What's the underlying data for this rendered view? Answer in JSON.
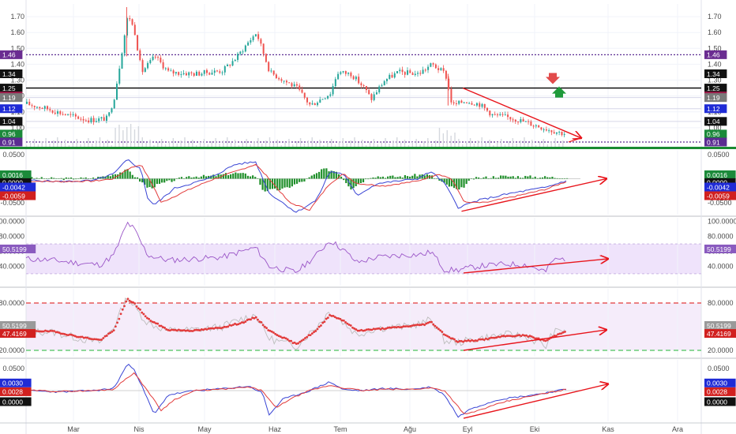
{
  "chart_data": [
    {
      "type": "candlestick",
      "x_labels": [
        "Mar",
        "Nis",
        "May",
        "Haz",
        "Tem",
        "Ağu",
        "Eyl",
        "Eki",
        "Kas",
        "Ara"
      ],
      "ylim": [
        0.88,
        1.78
      ],
      "y_ticks": [
        "1.70",
        "1.60",
        "1.50",
        "1.40",
        "1.30",
        "1.20",
        "1.10",
        "1.00"
      ],
      "horizontal_levels": [
        {
          "value": 1.46,
          "label": "1.46",
          "style": "dotted",
          "color": "#5b2c91"
        },
        {
          "value": 1.25,
          "label": "1.25",
          "style": "solid",
          "color": "#000000"
        },
        {
          "value": 0.91,
          "label": "0.91",
          "style": "dotted",
          "color": "#5b2c91"
        }
      ],
      "price_badges": [
        {
          "value": 1.46,
          "label": "1.46",
          "color": "#6a2c91"
        },
        {
          "value": 1.34,
          "label": "1.34",
          "color": "#111111"
        },
        {
          "value": 1.25,
          "label": "1.25",
          "color": "#111111"
        },
        {
          "value": 1.25,
          "label": "1.25",
          "color": "#9c1b4a"
        },
        {
          "value": 1.19,
          "label": "1.19",
          "color": "#7a7a7a"
        },
        {
          "value": 1.12,
          "label": "1.12",
          "color": "#1f2bd6"
        },
        {
          "value": 1.04,
          "label": "1.04",
          "color": "#111111"
        },
        {
          "value": 0.96,
          "label": "0.96",
          "color": "#1b8a3a"
        },
        {
          "value": 0.91,
          "label": "0.91",
          "color": "#5b2c91"
        }
      ],
      "close_path": [
        [
          0,
          1.15
        ],
        [
          0.03,
          1.12
        ],
        [
          0.06,
          1.08
        ],
        [
          0.09,
          1.05
        ],
        [
          0.1,
          1.05
        ],
        [
          0.12,
          1.06
        ],
        [
          0.13,
          1.2
        ],
        [
          0.15,
          1.72
        ],
        [
          0.16,
          1.6
        ],
        [
          0.17,
          1.35
        ],
        [
          0.19,
          1.45
        ],
        [
          0.21,
          1.35
        ],
        [
          0.25,
          1.34
        ],
        [
          0.29,
          1.36
        ],
        [
          0.31,
          1.44
        ],
        [
          0.33,
          1.55
        ],
        [
          0.34,
          1.6
        ],
        [
          0.36,
          1.35
        ],
        [
          0.38,
          1.3
        ],
        [
          0.4,
          1.25
        ],
        [
          0.42,
          1.14
        ],
        [
          0.45,
          1.22
        ],
        [
          0.46,
          1.35
        ],
        [
          0.48,
          1.34
        ],
        [
          0.5,
          1.25
        ],
        [
          0.51,
          1.18
        ],
        [
          0.53,
          1.3
        ],
        [
          0.55,
          1.35
        ],
        [
          0.58,
          1.34
        ],
        [
          0.6,
          1.4
        ],
        [
          0.62,
          1.34
        ],
        [
          0.63,
          1.14
        ],
        [
          0.65,
          1.17
        ],
        [
          0.67,
          1.15
        ],
        [
          0.69,
          1.08
        ],
        [
          0.72,
          1.06
        ],
        [
          0.75,
          1.02
        ],
        [
          0.78,
          0.98
        ],
        [
          0.8,
          0.96
        ]
      ],
      "annotations": [
        "sell-arrow",
        "buy-arrow",
        "descending-trendline"
      ]
    },
    {
      "type": "macd",
      "ylim": [
        -0.075,
        0.06
      ],
      "y_ticks": [
        "0.0500",
        "-0.0500"
      ],
      "badges": [
        {
          "value": 0.0016,
          "label": "0.0016",
          "color": "#1b8a3a"
        },
        {
          "value": 0.0,
          "label": "0.0000",
          "color": "#111111"
        },
        {
          "value": -0.0042,
          "label": "-0.0042",
          "color": "#1f2bd6"
        },
        {
          "value": -0.0059,
          "label": "-0.0059",
          "color": "#d1201f"
        }
      ],
      "macd_path": [
        [
          0,
          -0.003
        ],
        [
          0.05,
          -0.006
        ],
        [
          0.1,
          -0.004
        ],
        [
          0.13,
          0.01
        ],
        [
          0.15,
          0.04
        ],
        [
          0.17,
          0.02
        ],
        [
          0.18,
          -0.04
        ],
        [
          0.19,
          -0.055
        ],
        [
          0.22,
          -0.02
        ],
        [
          0.27,
          0.0
        ],
        [
          0.31,
          0.03
        ],
        [
          0.34,
          0.035
        ],
        [
          0.36,
          -0.03
        ],
        [
          0.4,
          -0.07
        ],
        [
          0.43,
          -0.045
        ],
        [
          0.45,
          0.015
        ],
        [
          0.47,
          0.01
        ],
        [
          0.49,
          -0.035
        ],
        [
          0.52,
          -0.01
        ],
        [
          0.58,
          0.0
        ],
        [
          0.6,
          0.015
        ],
        [
          0.62,
          -0.01
        ],
        [
          0.64,
          -0.06
        ],
        [
          0.67,
          -0.045
        ],
        [
          0.72,
          -0.03
        ],
        [
          0.77,
          -0.018
        ],
        [
          0.8,
          -0.004
        ]
      ],
      "signal_path": [
        [
          0,
          -0.005
        ],
        [
          0.05,
          -0.006
        ],
        [
          0.1,
          -0.005
        ],
        [
          0.13,
          0.0
        ],
        [
          0.15,
          0.02
        ],
        [
          0.17,
          0.03
        ],
        [
          0.19,
          -0.02
        ],
        [
          0.2,
          -0.05
        ],
        [
          0.23,
          -0.03
        ],
        [
          0.27,
          -0.005
        ],
        [
          0.31,
          0.015
        ],
        [
          0.34,
          0.03
        ],
        [
          0.36,
          0.0
        ],
        [
          0.39,
          -0.05
        ],
        [
          0.42,
          -0.065
        ],
        [
          0.45,
          -0.01
        ],
        [
          0.47,
          0.01
        ],
        [
          0.49,
          -0.01
        ],
        [
          0.53,
          -0.015
        ],
        [
          0.58,
          -0.005
        ],
        [
          0.61,
          0.01
        ],
        [
          0.63,
          0.0
        ],
        [
          0.65,
          -0.05
        ],
        [
          0.68,
          -0.05
        ],
        [
          0.73,
          -0.035
        ],
        [
          0.77,
          -0.022
        ],
        [
          0.8,
          -0.006
        ]
      ],
      "histogram_path": [
        [
          0,
          0.001
        ],
        [
          0.05,
          0.0
        ],
        [
          0.1,
          0.001
        ],
        [
          0.13,
          0.01
        ],
        [
          0.15,
          0.018
        ],
        [
          0.16,
          0.005
        ],
        [
          0.18,
          -0.02
        ],
        [
          0.2,
          -0.01
        ],
        [
          0.24,
          0.005
        ],
        [
          0.27,
          0.005
        ],
        [
          0.31,
          0.012
        ],
        [
          0.34,
          0.005
        ],
        [
          0.35,
          -0.025
        ],
        [
          0.38,
          -0.022
        ],
        [
          0.41,
          -0.005
        ],
        [
          0.44,
          0.02
        ],
        [
          0.46,
          0.015
        ],
        [
          0.48,
          -0.02
        ],
        [
          0.51,
          0.005
        ],
        [
          0.55,
          0.004
        ],
        [
          0.59,
          0.009
        ],
        [
          0.6,
          0.005
        ],
        [
          0.62,
          -0.012
        ],
        [
          0.64,
          -0.025
        ],
        [
          0.66,
          0.0
        ],
        [
          0.7,
          0.005
        ],
        [
          0.75,
          0.004
        ],
        [
          0.8,
          0.002
        ]
      ],
      "annotations": [
        "ascending-trendline"
      ]
    },
    {
      "type": "rsi",
      "ylim": [
        14,
        105
      ],
      "y_ticks": [
        "100.0000",
        "80.0000",
        "60.0000",
        "40.0000"
      ],
      "band": [
        30,
        70
      ],
      "badge": {
        "value": 50.5199,
        "label": "50.5199",
        "color": "#8a5bbf"
      },
      "rsi_path": [
        [
          0,
          50
        ],
        [
          0.04,
          48
        ],
        [
          0.08,
          44
        ],
        [
          0.11,
          42
        ],
        [
          0.13,
          55
        ],
        [
          0.15,
          98
        ],
        [
          0.16,
          90
        ],
        [
          0.18,
          55
        ],
        [
          0.21,
          48
        ],
        [
          0.25,
          50
        ],
        [
          0.29,
          52
        ],
        [
          0.32,
          60
        ],
        [
          0.34,
          65
        ],
        [
          0.36,
          40
        ],
        [
          0.4,
          32
        ],
        [
          0.43,
          55
        ],
        [
          0.45,
          75
        ],
        [
          0.47,
          62
        ],
        [
          0.49,
          45
        ],
        [
          0.52,
          52
        ],
        [
          0.56,
          55
        ],
        [
          0.59,
          56
        ],
        [
          0.6,
          60
        ],
        [
          0.62,
          35
        ],
        [
          0.64,
          35
        ],
        [
          0.67,
          40
        ],
        [
          0.71,
          43
        ],
        [
          0.74,
          42
        ],
        [
          0.77,
          33
        ],
        [
          0.78,
          48
        ],
        [
          0.8,
          50.5
        ]
      ],
      "annotations": [
        "ascending-trendline"
      ]
    },
    {
      "type": "stochastic-rsi",
      "ylim": [
        12,
        98
      ],
      "y_ticks": [
        "80.0000",
        "50.5199",
        "20.0000"
      ],
      "overbought": 80,
      "oversold": 20,
      "badges": [
        {
          "value": 50.5199,
          "label": "50.5199",
          "color": "#9a9a9a"
        },
        {
          "value": 47.4169,
          "label": "47.4169",
          "color": "#d1201f"
        }
      ],
      "fast_path": [
        [
          0,
          44
        ],
        [
          0.04,
          43
        ],
        [
          0.08,
          35
        ],
        [
          0.11,
          30
        ],
        [
          0.13,
          50
        ],
        [
          0.15,
          88
        ],
        [
          0.16,
          75
        ],
        [
          0.18,
          55
        ],
        [
          0.21,
          45
        ],
        [
          0.25,
          46
        ],
        [
          0.29,
          50
        ],
        [
          0.32,
          60
        ],
        [
          0.34,
          65
        ],
        [
          0.36,
          35
        ],
        [
          0.4,
          25
        ],
        [
          0.43,
          50
        ],
        [
          0.45,
          70
        ],
        [
          0.47,
          55
        ],
        [
          0.49,
          40
        ],
        [
          0.52,
          48
        ],
        [
          0.56,
          50
        ],
        [
          0.59,
          55
        ],
        [
          0.6,
          60
        ],
        [
          0.62,
          32
        ],
        [
          0.64,
          30
        ],
        [
          0.67,
          35
        ],
        [
          0.71,
          40
        ],
        [
          0.74,
          38
        ],
        [
          0.77,
          25
        ],
        [
          0.78,
          42
        ],
        [
          0.8,
          47.4
        ]
      ],
      "slow_path": [
        [
          0,
          45
        ],
        [
          0.04,
          44
        ],
        [
          0.08,
          37
        ],
        [
          0.11,
          33
        ],
        [
          0.13,
          45
        ],
        [
          0.15,
          85
        ],
        [
          0.16,
          80
        ],
        [
          0.18,
          60
        ],
        [
          0.21,
          46
        ],
        [
          0.25,
          45
        ],
        [
          0.29,
          49
        ],
        [
          0.32,
          55
        ],
        [
          0.34,
          62
        ],
        [
          0.36,
          45
        ],
        [
          0.4,
          28
        ],
        [
          0.43,
          45
        ],
        [
          0.45,
          65
        ],
        [
          0.47,
          58
        ],
        [
          0.49,
          45
        ],
        [
          0.52,
          47
        ],
        [
          0.56,
          50
        ],
        [
          0.59,
          53
        ],
        [
          0.6,
          56
        ],
        [
          0.62,
          40
        ],
        [
          0.64,
          31
        ],
        [
          0.67,
          33
        ],
        [
          0.71,
          38
        ],
        [
          0.74,
          39
        ],
        [
          0.77,
          32
        ],
        [
          0.78,
          37
        ],
        [
          0.8,
          45
        ]
      ],
      "annotations": [
        "ascending-trendline"
      ]
    },
    {
      "type": "oscillator",
      "ylim": [
        -0.07,
        0.07
      ],
      "y_ticks": [
        "0.0500"
      ],
      "badges": [
        {
          "value": 0.003,
          "label": "0.0030",
          "color": "#1f2bd6"
        },
        {
          "value": 0.0028,
          "label": "0.0028",
          "color": "#d1201f"
        },
        {
          "value": 0.0,
          "label": "0.0000",
          "color": "#111111"
        }
      ],
      "blue_path": [
        [
          0,
          0.0
        ],
        [
          0.05,
          -0.003
        ],
        [
          0.1,
          0.0
        ],
        [
          0.13,
          0.005
        ],
        [
          0.15,
          0.06
        ],
        [
          0.16,
          0.05
        ],
        [
          0.18,
          -0.02
        ],
        [
          0.19,
          -0.055
        ],
        [
          0.21,
          -0.01
        ],
        [
          0.25,
          0.0
        ],
        [
          0.29,
          0.004
        ],
        [
          0.33,
          0.01
        ],
        [
          0.35,
          -0.005
        ],
        [
          0.36,
          -0.055
        ],
        [
          0.38,
          -0.02
        ],
        [
          0.42,
          0.0
        ],
        [
          0.45,
          0.02
        ],
        [
          0.47,
          0.002
        ],
        [
          0.5,
          0.0
        ],
        [
          0.53,
          0.005
        ],
        [
          0.57,
          0.003
        ],
        [
          0.6,
          0.008
        ],
        [
          0.62,
          -0.01
        ],
        [
          0.64,
          -0.06
        ],
        [
          0.66,
          -0.04
        ],
        [
          0.7,
          -0.02
        ],
        [
          0.75,
          -0.01
        ],
        [
          0.8,
          0.003
        ]
      ],
      "red_path": [
        [
          0,
          0.001
        ],
        [
          0.05,
          -0.002
        ],
        [
          0.1,
          0.0
        ],
        [
          0.13,
          0.003
        ],
        [
          0.15,
          0.03
        ],
        [
          0.16,
          0.04
        ],
        [
          0.18,
          0.0
        ],
        [
          0.2,
          -0.045
        ],
        [
          0.22,
          -0.02
        ],
        [
          0.25,
          0.0
        ],
        [
          0.29,
          0.003
        ],
        [
          0.33,
          0.008
        ],
        [
          0.35,
          0.0
        ],
        [
          0.37,
          -0.04
        ],
        [
          0.39,
          -0.02
        ],
        [
          0.42,
          0.0
        ],
        [
          0.45,
          0.012
        ],
        [
          0.47,
          0.006
        ],
        [
          0.5,
          0.0
        ],
        [
          0.53,
          0.003
        ],
        [
          0.57,
          0.003
        ],
        [
          0.6,
          0.006
        ],
        [
          0.62,
          0.0
        ],
        [
          0.65,
          -0.055
        ],
        [
          0.67,
          -0.045
        ],
        [
          0.71,
          -0.025
        ],
        [
          0.75,
          -0.012
        ],
        [
          0.8,
          0.0028
        ]
      ],
      "annotations": [
        "ascending-trendline"
      ]
    }
  ]
}
